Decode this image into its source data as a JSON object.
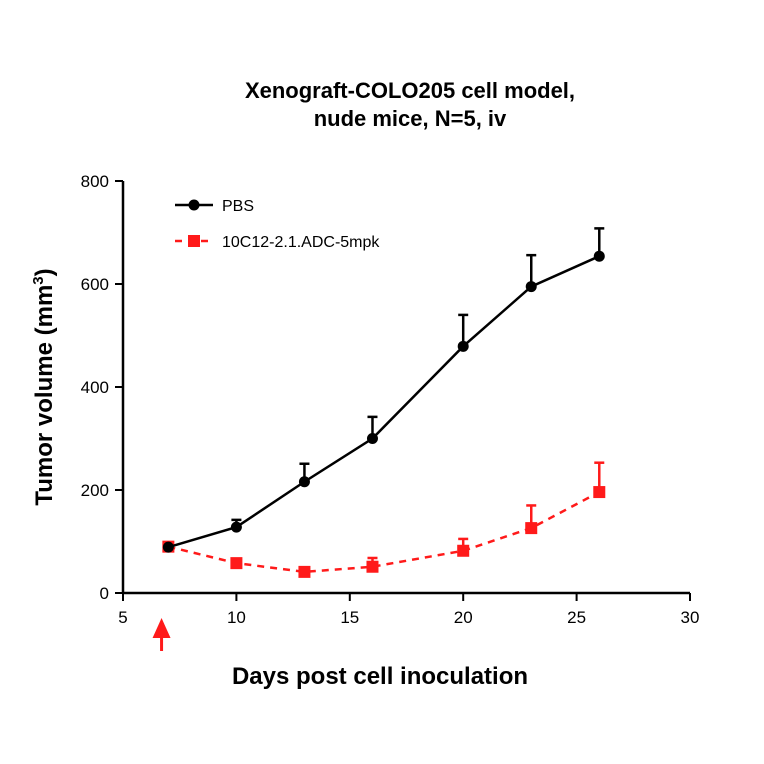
{
  "chart_data": {
    "type": "line",
    "title": [
      "Xenograft-COLO205 cell model,",
      "nude mice, N=5, iv"
    ],
    "xlabel": "Days post cell inoculation",
    "ylabel": "Tumor volume (mm",
    "ylabel_sup": "3",
    "ylabel_close": ")",
    "xlim": [
      5,
      30
    ],
    "ylim": [
      0,
      800
    ],
    "xticks": [
      5,
      10,
      15,
      20,
      25,
      30
    ],
    "yticks": [
      0,
      200,
      400,
      600,
      800
    ],
    "grid": false,
    "legend_position": "top-left",
    "x": [
      7,
      10,
      13,
      16,
      20,
      23,
      26
    ],
    "series": [
      {
        "name": "PBS",
        "color": "#000000",
        "style": "solid",
        "marker": "circle",
        "values": [
          89,
          128,
          216,
          300,
          479,
          595,
          654
        ],
        "error_upper": [
          89,
          142,
          251,
          342,
          540,
          656,
          708
        ]
      },
      {
        "name": "10C12-2.1.ADC-5mpk",
        "color": "#ff1a1a",
        "style": "dashed",
        "marker": "square",
        "values": [
          90,
          58,
          41,
          51,
          82,
          126,
          196
        ],
        "error_upper": [
          90,
          62,
          45,
          68,
          105,
          170,
          253
        ]
      }
    ],
    "annotations": [
      {
        "type": "arrow",
        "x": 6.7,
        "color": "#ff1a1a",
        "meaning": "dosing"
      }
    ]
  }
}
